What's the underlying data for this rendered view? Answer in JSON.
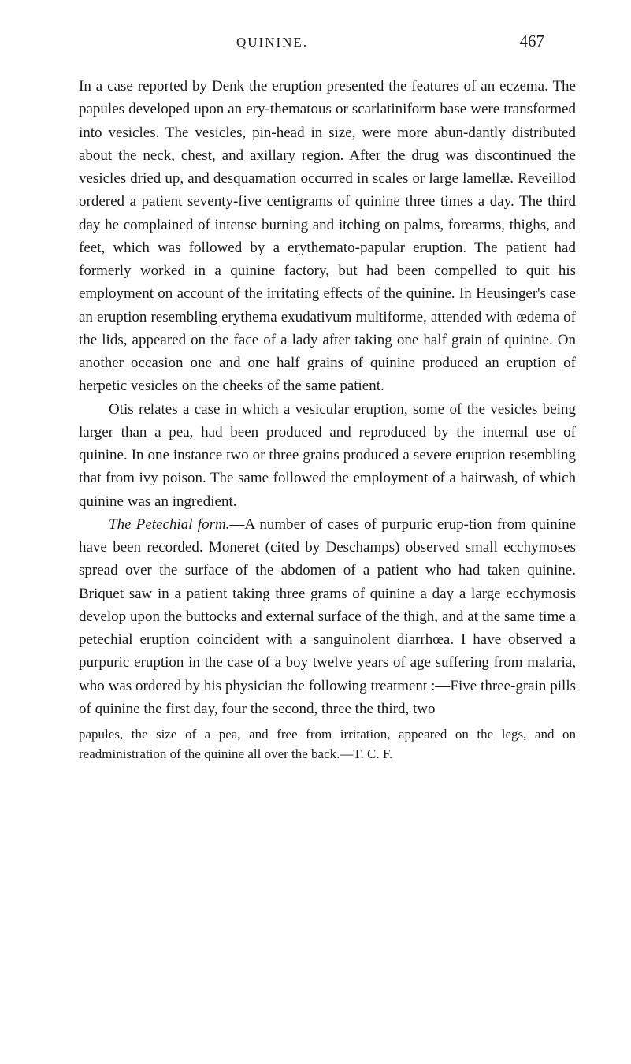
{
  "header": {
    "title": "QUININE.",
    "page_number": "467"
  },
  "paragraphs": {
    "p1": "In a case reported by Denk the eruption presented the features of an eczema. The papules developed upon an ery-thematous or scarlatiniform base were transformed into vesicles. The vesicles, pin-head in size, were more abun-dantly distributed about the neck, chest, and axillary region. After the drug was discontinued the vesicles dried up, and desquamation occurred in scales or large lamellæ. Reveillod ordered a patient seventy-five centigrams of quinine three times a day. The third day he complained of intense burning and itching on palms, forearms, thighs, and feet, which was followed by a erythemato-papular eruption. The patient had formerly worked in a quinine factory, but had been compelled to quit his employment on account of the irritating effects of the quinine. In Heusinger's case an eruption resembling erythema exudativum multiforme, attended with œdema of the lids, appeared on the face of a lady after taking one half grain of quinine. On another occasion one and one half grains of quinine produced an eruption of herpetic vesicles on the cheeks of the same patient.",
    "p2": "Otis relates a case in which a vesicular eruption, some of the vesicles being larger than a pea, had been produced and reproduced by the internal use of quinine. In one instance two or three grains produced a severe eruption resembling that from ivy poison. The same followed the employment of a hairwash, of which quinine was an ingredient.",
    "p3_intro": "The Petechial form.",
    "p3_body": "—A number of cases of purpuric erup-tion from quinine have been recorded. Moneret (cited by Deschamps) observed small ecchymoses spread over the surface of the abdomen of a patient who had taken quinine. Briquet saw in a patient taking three grams of quinine a day a large ecchymosis develop upon the buttocks and external surface of the thigh, and at the same time a petechial eruption coincident with a sanguinolent diarrhœa. I have observed a purpuric eruption in the case of a boy twelve years of age suffering from malaria, who was ordered by his physician the following treatment :—Five three-grain pills of quinine the first day, four the second, three the third, two",
    "footnote": "papules, the size of a pea, and free from irritation, appeared on the legs, and on readministration of the quinine all over the back.—T. C. F."
  }
}
